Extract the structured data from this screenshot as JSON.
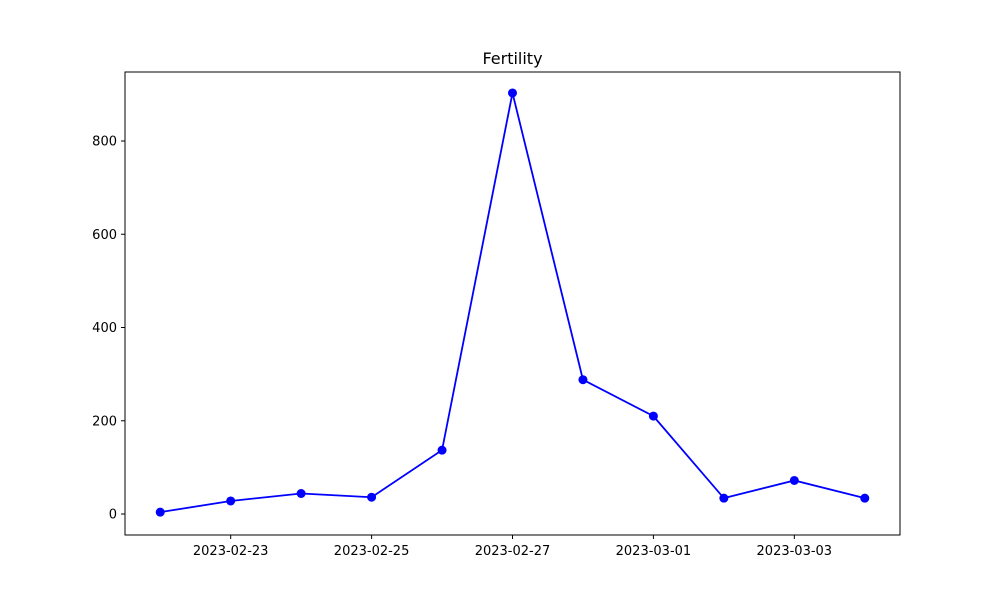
{
  "chart_data": {
    "type": "line",
    "title": "Fertility",
    "xlabel": "",
    "ylabel": "",
    "x": [
      "2023-02-22",
      "2023-02-23",
      "2023-02-24",
      "2023-02-25",
      "2023-02-26",
      "2023-02-27",
      "2023-02-28",
      "2023-03-01",
      "2023-03-02",
      "2023-03-03",
      "2023-03-04"
    ],
    "series": [
      {
        "values": [
          4,
          28,
          44,
          36,
          137,
          903,
          288,
          210,
          34,
          72,
          34
        ],
        "color": "#0000ff"
      }
    ],
    "xlim": [
      "2023-02-21.5",
      "2023-03-04.5"
    ],
    "ylim": [
      -45,
      948
    ],
    "xticks": [
      "2023-02-23",
      "2023-02-25",
      "2023-02-27",
      "2023-03-01",
      "2023-03-03"
    ],
    "yticks": [
      0,
      200,
      400,
      600,
      800
    ],
    "grid": false,
    "legend": "none",
    "marker": "circle"
  }
}
